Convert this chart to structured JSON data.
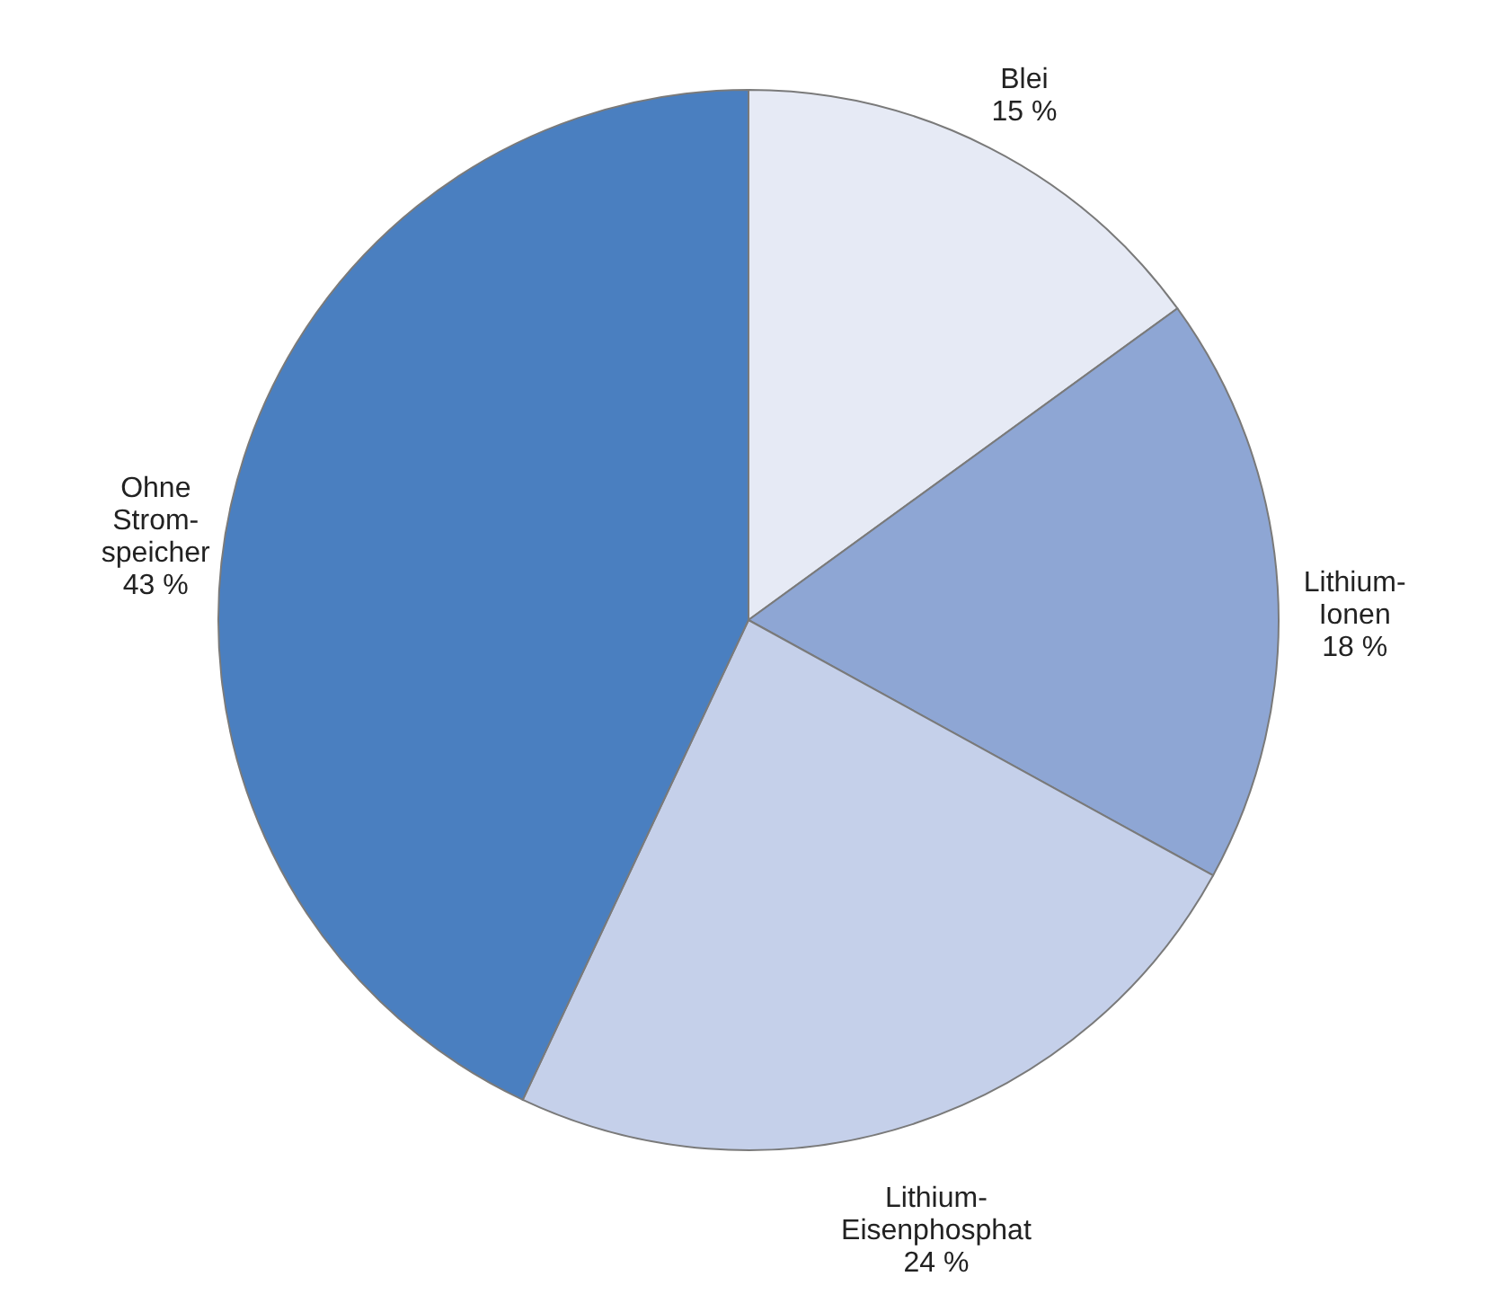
{
  "chart_data": {
    "type": "pie",
    "categories": [
      "Blei",
      "Lithium-Ionen",
      "Lithium-Eisenphosphat",
      "Ohne Strom-speicher"
    ],
    "values": [
      15,
      18,
      24,
      43
    ],
    "colors": [
      "#e6eaf5",
      "#8ea6d4",
      "#c5d0ea",
      "#4a7fc0"
    ],
    "value_labels": [
      "15 %",
      "18 %",
      "24 %",
      "43 %"
    ]
  }
}
